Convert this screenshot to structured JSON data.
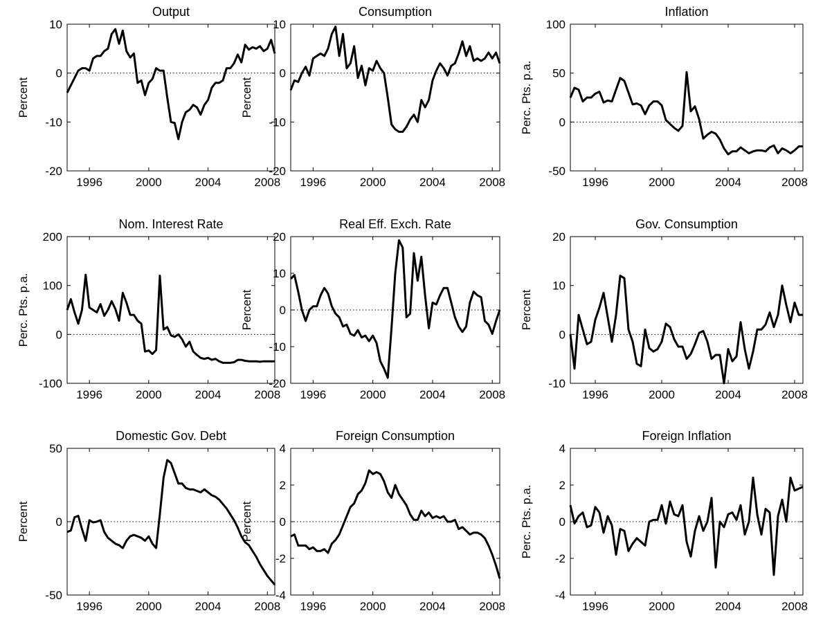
{
  "chart_data": [
    {
      "type": "line",
      "title": "Output",
      "y_label": "Percent",
      "color": "#000000",
      "hline": 0,
      "x": [
        1994.5,
        1994.75,
        1995,
        1995.25,
        1995.5,
        1995.75,
        1996,
        1996.25,
        1996.5,
        1996.75,
        1997,
        1997.25,
        1997.5,
        1997.75,
        1998,
        1998.25,
        1998.5,
        1998.75,
        1999,
        1999.25,
        1999.5,
        1999.75,
        2000,
        2000.25,
        2000.5,
        2000.75,
        2001,
        2001.25,
        2001.5,
        2001.75,
        2002,
        2002.25,
        2002.5,
        2002.75,
        2003,
        2003.25,
        2003.5,
        2003.75,
        2004,
        2004.25,
        2004.5,
        2004.75,
        2005,
        2005.25,
        2005.5,
        2005.75,
        2006,
        2006.25,
        2006.5,
        2006.75,
        2007,
        2007.25,
        2007.5,
        2007.75,
        2008,
        2008.25,
        2008.5
      ],
      "values": [
        -4,
        -2.5,
        -1,
        0.5,
        1,
        1,
        0.5,
        3,
        3.5,
        3.5,
        4.5,
        5,
        8,
        9,
        6,
        8.7,
        4.5,
        3.2,
        4,
        -2,
        -1.5,
        -4.5,
        -2,
        -1.2,
        1,
        0.5,
        0.5,
        -5,
        -10,
        -10.2,
        -13.5,
        -10,
        -8,
        -7.5,
        -6.5,
        -7,
        -8.5,
        -6.5,
        -5.5,
        -3,
        -2,
        -2,
        -1.5,
        1,
        1,
        2,
        3.8,
        2.2,
        5.8,
        4.8,
        5.3,
        5,
        5.5,
        4.5,
        5,
        6.8,
        4
      ],
      "xlim": [
        1994.5,
        2008.5
      ],
      "xticks": [
        1996,
        2000,
        2004,
        2008
      ],
      "ylim": [
        -20,
        10
      ],
      "yticks": [
        -20,
        -10,
        0,
        10
      ]
    },
    {
      "type": "line",
      "title": "Consumption",
      "y_label": "Percent",
      "color": "#000000",
      "hline": 0,
      "x": [
        1994.5,
        1994.75,
        1995,
        1995.25,
        1995.5,
        1995.75,
        1996,
        1996.25,
        1996.5,
        1996.75,
        1997,
        1997.25,
        1997.5,
        1997.75,
        1998,
        1998.25,
        1998.5,
        1998.75,
        1999,
        1999.25,
        1999.5,
        1999.75,
        2000,
        2000.25,
        2000.5,
        2000.75,
        2001,
        2001.25,
        2001.5,
        2001.75,
        2002,
        2002.25,
        2002.5,
        2002.75,
        2003,
        2003.25,
        2003.5,
        2003.75,
        2004,
        2004.25,
        2004.5,
        2004.75,
        2005,
        2005.25,
        2005.5,
        2005.75,
        2006,
        2006.25,
        2006.5,
        2006.75,
        2007,
        2007.25,
        2007.5,
        2007.75,
        2008,
        2008.25,
        2008.5
      ],
      "values": [
        -3.5,
        -1.5,
        -1.8,
        0,
        1.3,
        -0.5,
        3,
        3.5,
        4,
        3.5,
        5,
        8,
        9.5,
        3.5,
        8,
        1,
        2,
        5.5,
        -1,
        1.5,
        -2.5,
        1,
        0.5,
        2.5,
        1,
        0,
        -5,
        -10.5,
        -11.5,
        -12,
        -12,
        -11,
        -9.5,
        -8.5,
        -10,
        -5.5,
        -7,
        -5.5,
        -1.5,
        0.5,
        2,
        1,
        -0.5,
        1.5,
        2,
        4,
        6.5,
        3.5,
        5.5,
        2.5,
        3,
        2.5,
        3,
        4.2,
        3,
        4.2,
        2
      ],
      "xlim": [
        1994.5,
        2008.5
      ],
      "xticks": [
        1996,
        2000,
        2004,
        2008
      ],
      "ylim": [
        -20,
        10
      ],
      "yticks": [
        -20,
        -10,
        0,
        10
      ]
    },
    {
      "type": "line",
      "title": "Inflation",
      "y_label": "Perc. Pts. p.a.",
      "color": "#000000",
      "hline": 0,
      "x": [
        1994.5,
        1994.75,
        1995,
        1995.25,
        1995.5,
        1995.75,
        1996,
        1996.25,
        1996.5,
        1996.75,
        1997,
        1997.25,
        1997.5,
        1997.75,
        1998,
        1998.25,
        1998.5,
        1998.75,
        1999,
        1999.25,
        1999.5,
        1999.75,
        2000,
        2000.25,
        2000.5,
        2000.75,
        2001,
        2001.25,
        2001.5,
        2001.75,
        2002,
        2002.25,
        2002.5,
        2002.75,
        2003,
        2003.25,
        2003.5,
        2003.75,
        2004,
        2004.25,
        2004.5,
        2004.75,
        2005,
        2005.25,
        2005.5,
        2005.75,
        2006,
        2006.25,
        2006.5,
        2006.75,
        2007,
        2007.25,
        2007.5,
        2007.75,
        2008,
        2008.25,
        2008.5
      ],
      "values": [
        25,
        35,
        33,
        21,
        25,
        25,
        29,
        31,
        20,
        22,
        21,
        33,
        45,
        42,
        30,
        18,
        19,
        17,
        8,
        17,
        21,
        21,
        17,
        2,
        -2,
        -6,
        -9,
        -4,
        51,
        11,
        16,
        3,
        -17,
        -13,
        -10,
        -12,
        -18,
        -27,
        -33,
        -30,
        -30,
        -26,
        -29,
        -32,
        -30,
        -29,
        -29,
        -30,
        -26,
        -24,
        -32,
        -27,
        -29,
        -32,
        -29,
        -25,
        -25
      ],
      "xlim": [
        1994.5,
        2008.5
      ],
      "xticks": [
        1996,
        2000,
        2004,
        2008
      ],
      "ylim": [
        -50,
        100
      ],
      "yticks": [
        -50,
        0,
        50,
        100
      ]
    },
    {
      "type": "line",
      "title": "Nom. Interest Rate",
      "y_label": "Perc. Pts. p.a.",
      "color": "#000000",
      "hline": 0,
      "x": [
        1994.5,
        1994.75,
        1995,
        1995.25,
        1995.5,
        1995.75,
        1996,
        1996.25,
        1996.5,
        1996.75,
        1997,
        1997.25,
        1997.5,
        1997.75,
        1998,
        1998.25,
        1998.5,
        1998.75,
        1999,
        1999.25,
        1999.5,
        1999.75,
        2000,
        2000.25,
        2000.5,
        2000.75,
        2001,
        2001.25,
        2001.5,
        2001.75,
        2002,
        2002.25,
        2002.5,
        2002.75,
        2003,
        2003.25,
        2003.5,
        2003.75,
        2004,
        2004.25,
        2004.5,
        2004.75,
        2005,
        2005.25,
        2005.5,
        2005.75,
        2006,
        2006.25,
        2006.5,
        2006.75,
        2007,
        2007.25,
        2007.5,
        2007.75,
        2008,
        2008.25,
        2008.5
      ],
      "values": [
        50,
        72,
        45,
        22,
        50,
        122,
        55,
        50,
        45,
        62,
        38,
        50,
        68,
        52,
        28,
        85,
        65,
        40,
        40,
        28,
        22,
        -35,
        -33,
        -40,
        -32,
        120,
        10,
        15,
        -2,
        -5,
        0,
        -10,
        -25,
        -15,
        -35,
        -42,
        -48,
        -50,
        -48,
        -52,
        -50,
        -55,
        -58,
        -58,
        -58,
        -57,
        -52,
        -52,
        -54,
        -55,
        -55,
        -55,
        -56,
        -55,
        -55,
        -55,
        -55
      ],
      "xlim": [
        1994.5,
        2008.5
      ],
      "xticks": [
        1996,
        2000,
        2004,
        2008
      ],
      "ylim": [
        -100,
        200
      ],
      "yticks": [
        -100,
        0,
        100,
        200
      ]
    },
    {
      "type": "line",
      "title": "Real Eff. Exch. Rate",
      "y_label": "Percent",
      "color": "#000000",
      "hline": 0,
      "x": [
        1994.5,
        1994.75,
        1995,
        1995.25,
        1995.5,
        1995.75,
        1996,
        1996.25,
        1996.5,
        1996.75,
        1997,
        1997.25,
        1997.5,
        1997.75,
        1998,
        1998.25,
        1998.5,
        1998.75,
        1999,
        1999.25,
        1999.5,
        1999.75,
        2000,
        2000.25,
        2000.5,
        2000.75,
        2001,
        2001.25,
        2001.5,
        2001.75,
        2002,
        2002.25,
        2002.5,
        2002.75,
        2003,
        2003.25,
        2003.5,
        2003.75,
        2004,
        2004.25,
        2004.5,
        2004.75,
        2005,
        2005.25,
        2005.5,
        2005.75,
        2006,
        2006.25,
        2006.5,
        2006.75,
        2007,
        2007.25,
        2007.5,
        2007.75,
        2008,
        2008.25,
        2008.5
      ],
      "values": [
        8.5,
        9.5,
        5,
        0,
        -3,
        0,
        1,
        1,
        4,
        6,
        4.5,
        1,
        -1,
        -2,
        -4.5,
        -4,
        -6.5,
        -7,
        -5.5,
        -7.5,
        -7,
        -8.5,
        -7,
        -9,
        -14,
        -16,
        -18.5,
        -5,
        10,
        19,
        17,
        -2,
        -1,
        15.5,
        8,
        14.5,
        4,
        -5,
        2,
        1.5,
        4,
        6,
        6,
        2,
        -2,
        -4.5,
        -6,
        -4.5,
        2,
        5,
        4,
        3.5,
        -3,
        -4,
        -6.5,
        -3,
        0
      ],
      "xlim": [
        1994.5,
        2008.5
      ],
      "xticks": [
        1996,
        2000,
        2004,
        2008
      ],
      "ylim": [
        -20,
        20
      ],
      "yticks": [
        -20,
        -10,
        0,
        10,
        20
      ]
    },
    {
      "type": "line",
      "title": "Gov. Consumption",
      "y_label": "Percent",
      "color": "#000000",
      "hline": 0,
      "x": [
        1994.5,
        1994.75,
        1995,
        1995.25,
        1995.5,
        1995.75,
        1996,
        1996.25,
        1996.5,
        1996.75,
        1997,
        1997.25,
        1997.5,
        1997.75,
        1998,
        1998.25,
        1998.5,
        1998.75,
        1999,
        1999.25,
        1999.5,
        1999.75,
        2000,
        2000.25,
        2000.5,
        2000.75,
        2001,
        2001.25,
        2001.5,
        2001.75,
        2002,
        2002.25,
        2002.5,
        2002.75,
        2003,
        2003.25,
        2003.5,
        2003.75,
        2004,
        2004.25,
        2004.5,
        2004.75,
        2005,
        2005.25,
        2005.5,
        2005.75,
        2006,
        2006.25,
        2006.5,
        2006.75,
        2007,
        2007.25,
        2007.5,
        2007.75,
        2008,
        2008.25,
        2008.5
      ],
      "values": [
        0,
        -7,
        4,
        1,
        -2,
        -1.5,
        3,
        5.5,
        8.5,
        3.5,
        -1.5,
        4,
        12,
        11.5,
        1,
        -1.5,
        -6,
        -6.5,
        1,
        -2.8,
        -3.5,
        -3,
        -1.5,
        2.2,
        1.5,
        -1,
        -2.5,
        -2.5,
        -5,
        -4,
        -2,
        0.3,
        0.7,
        -1.5,
        -5,
        -4.2,
        -4.2,
        -10,
        -3,
        -5.5,
        -4.5,
        2.5,
        -3,
        -7,
        -3.5,
        1,
        1,
        2,
        4.5,
        1.5,
        4,
        10,
        6,
        2.5,
        6.5,
        4,
        4
      ],
      "xlim": [
        1994.5,
        2008.5
      ],
      "xticks": [
        1996,
        2000,
        2004,
        2008
      ],
      "ylim": [
        -10,
        20
      ],
      "yticks": [
        -10,
        0,
        10,
        20
      ]
    },
    {
      "type": "line",
      "title": "Domestic Gov. Debt",
      "y_label": "Percent",
      "color": "#000000",
      "hline": 0,
      "x": [
        1994.5,
        1994.75,
        1995,
        1995.25,
        1995.5,
        1995.75,
        1996,
        1996.25,
        1996.5,
        1996.75,
        1997,
        1997.25,
        1997.5,
        1997.75,
        1998,
        1998.25,
        1998.5,
        1998.75,
        1999,
        1999.25,
        1999.5,
        1999.75,
        2000,
        2000.25,
        2000.5,
        2000.75,
        2001,
        2001.25,
        2001.5,
        2001.75,
        2002,
        2002.25,
        2002.5,
        2002.75,
        2003,
        2003.25,
        2003.5,
        2003.75,
        2004,
        2004.25,
        2004.5,
        2004.75,
        2005,
        2005.25,
        2005.5,
        2005.75,
        2006,
        2006.25,
        2006.5,
        2006.75,
        2007,
        2007.25,
        2007.5,
        2007.75,
        2008,
        2008.25,
        2008.5
      ],
      "values": [
        -7,
        -6,
        3,
        4,
        -5,
        -13,
        1,
        -0.5,
        0,
        1,
        -7,
        -11,
        -13,
        -15,
        -16,
        -18,
        -13,
        -10,
        -9,
        -10,
        -11,
        -13,
        -10,
        -15,
        -18,
        5,
        30,
        42,
        40,
        33,
        26,
        26,
        23,
        22,
        22,
        21,
        20,
        22,
        20,
        18,
        17,
        15,
        12,
        9,
        5,
        1,
        -4,
        -10,
        -14,
        -16,
        -20,
        -24,
        -29,
        -33,
        -37,
        -40,
        -43
      ],
      "xlim": [
        1994.5,
        2008.5
      ],
      "xticks": [
        1996,
        2000,
        2004,
        2008
      ],
      "ylim": [
        -50,
        50
      ],
      "yticks": [
        -50,
        0,
        50
      ]
    },
    {
      "type": "line",
      "title": "Foreign Consumption",
      "y_label": "Percent",
      "color": "#000000",
      "hline": 0,
      "x": [
        1994.5,
        1994.75,
        1995,
        1995.25,
        1995.5,
        1995.75,
        1996,
        1996.25,
        1996.5,
        1996.75,
        1997,
        1997.25,
        1997.5,
        1997.75,
        1998,
        1998.25,
        1998.5,
        1998.75,
        1999,
        1999.25,
        1999.5,
        1999.75,
        2000,
        2000.25,
        2000.5,
        2000.75,
        2001,
        2001.25,
        2001.5,
        2001.75,
        2002,
        2002.25,
        2002.5,
        2002.75,
        2003,
        2003.25,
        2003.5,
        2003.75,
        2004,
        2004.25,
        2004.5,
        2004.75,
        2005,
        2005.25,
        2005.5,
        2005.75,
        2006,
        2006.25,
        2006.5,
        2006.75,
        2007,
        2007.25,
        2007.5,
        2007.75,
        2008,
        2008.25,
        2008.5
      ],
      "values": [
        -0.8,
        -0.7,
        -1.3,
        -1.3,
        -1.3,
        -1.5,
        -1.4,
        -1.6,
        -1.6,
        -1.5,
        -1.7,
        -1.2,
        -1,
        -0.7,
        -0.2,
        0.3,
        0.8,
        1,
        1.5,
        1.7,
        2.1,
        2.8,
        2.6,
        2.7,
        2.6,
        2.2,
        1.6,
        1.3,
        2,
        1.5,
        1.2,
        0.9,
        0.4,
        0.1,
        0.1,
        0.6,
        0.3,
        0.5,
        0.2,
        0.3,
        0.2,
        0.3,
        0,
        0,
        0.1,
        -0.4,
        -0.3,
        -0.5,
        -0.7,
        -0.6,
        -0.6,
        -0.7,
        -0.9,
        -1.3,
        -1.8,
        -2.4,
        -3.1
      ],
      "xlim": [
        1994.5,
        2008.5
      ],
      "xticks": [
        1996,
        2000,
        2004,
        2008
      ],
      "ylim": [
        -4,
        4
      ],
      "yticks": [
        -4,
        -2,
        0,
        2,
        4
      ]
    },
    {
      "type": "line",
      "title": "Foreign Inflation",
      "y_label": "Perc. Pts. p.a.",
      "color": "#000000",
      "hline": 0,
      "x": [
        1994.5,
        1994.75,
        1995,
        1995.25,
        1995.5,
        1995.75,
        1996,
        1996.25,
        1996.5,
        1996.75,
        1997,
        1997.25,
        1997.5,
        1997.75,
        1998,
        1998.25,
        1998.5,
        1998.75,
        1999,
        1999.25,
        1999.5,
        1999.75,
        2000,
        2000.25,
        2000.5,
        2000.75,
        2001,
        2001.25,
        2001.5,
        2001.75,
        2002,
        2002.25,
        2002.5,
        2002.75,
        2003,
        2003.25,
        2003.5,
        2003.75,
        2004,
        2004.25,
        2004.5,
        2004.75,
        2005,
        2005.25,
        2005.5,
        2005.75,
        2006,
        2006.25,
        2006.5,
        2006.75,
        2007,
        2007.25,
        2007.5,
        2007.75,
        2008,
        2008.25,
        2008.5
      ],
      "values": [
        0.9,
        -0.1,
        0.3,
        0.5,
        -0.3,
        -0.2,
        0.8,
        0.5,
        -0.6,
        0.3,
        -0.2,
        -1.8,
        -0.4,
        -0.5,
        -1.6,
        -1.2,
        -0.9,
        -1.1,
        -1.3,
        0,
        0.1,
        0.1,
        0.9,
        -0.1,
        1.1,
        0.4,
        0.3,
        0.9,
        -1.1,
        -1.9,
        -0.5,
        0.3,
        -0.5,
        0,
        1.3,
        -2.5,
        0,
        -0.3,
        0.4,
        0.5,
        0.1,
        0.9,
        -0.7,
        0,
        2.4,
        0.4,
        -0.7,
        0.7,
        0.5,
        -2.9,
        0.3,
        1.2,
        0,
        2.4,
        1.7,
        1.8,
        1.9
      ],
      "xlim": [
        1994.5,
        2008.5
      ],
      "xticks": [
        1996,
        2000,
        2004,
        2008
      ],
      "ylim": [
        -4,
        4
      ],
      "yticks": [
        -4,
        -2,
        0,
        2,
        4
      ]
    }
  ]
}
